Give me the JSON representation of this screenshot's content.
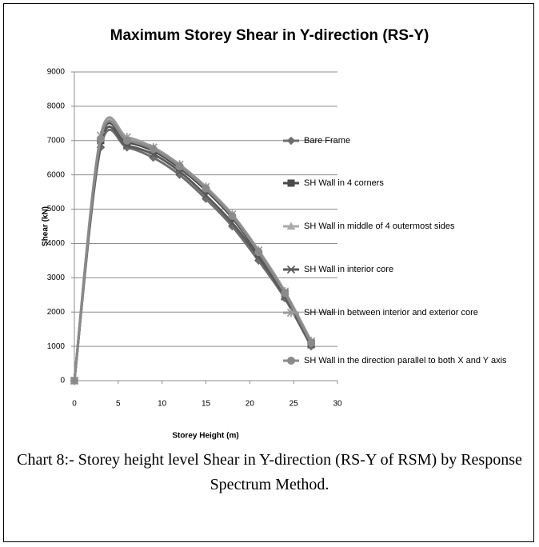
{
  "chart_data": {
    "type": "line",
    "title": "Maximum Storey Shear in Y-direction (RS-Y)",
    "xlabel": "Storey Height (m)",
    "ylabel": "Shear (kN)",
    "x": [
      0,
      3,
      6,
      9,
      12,
      15,
      18,
      21,
      24,
      27
    ],
    "xlim": [
      0,
      30
    ],
    "xticks": [
      0,
      5,
      10,
      15,
      20,
      25,
      30
    ],
    "ylim": [
      0,
      9000
    ],
    "yticks": [
      0,
      1000,
      2000,
      3000,
      4000,
      5000,
      6000,
      7000,
      8000,
      9000
    ],
    "grid": true,
    "legend": "right",
    "smooth": true,
    "series": [
      {
        "name": "Bare Frame",
        "color": "#6f6f6f",
        "marker": "diamond",
        "values": [
          0,
          6800,
          6800,
          6500,
          6000,
          5300,
          4500,
          3500,
          2400,
          1000
        ]
      },
      {
        "name": "SH Wall in 4 corners",
        "color": "#4a4a4a",
        "marker": "square",
        "values": [
          0,
          7000,
          6950,
          6700,
          6200,
          5550,
          4750,
          3700,
          2550,
          1100
        ]
      },
      {
        "name": "SH Wall in middle of 4 outermost sides",
        "color": "#ababab",
        "marker": "triangle",
        "values": [
          0,
          7100,
          7050,
          6800,
          6300,
          5650,
          4800,
          3800,
          2600,
          1150
        ]
      },
      {
        "name": "SH Wall in interior core",
        "color": "#5a5a5a",
        "marker": "x",
        "values": [
          0,
          6900,
          6850,
          6600,
          6100,
          5400,
          4600,
          3600,
          2450,
          1050
        ]
      },
      {
        "name": "SH Wall in between interior and exterior core",
        "color": "#9a9a9a",
        "marker": "star",
        "values": [
          0,
          7150,
          7100,
          6800,
          6300,
          5650,
          4850,
          3800,
          2600,
          1150
        ]
      },
      {
        "name": "SH Wall in the direction parallel to both X and Y axis",
        "color": "#8a8a8a",
        "marker": "circle",
        "values": [
          0,
          7050,
          7000,
          6750,
          6250,
          5600,
          4800,
          3750,
          2550,
          1100
        ]
      }
    ]
  },
  "caption": "Chart 8:- Storey height level Shear in Y-direction (RS-Y of RSM) by Response Spectrum Method."
}
